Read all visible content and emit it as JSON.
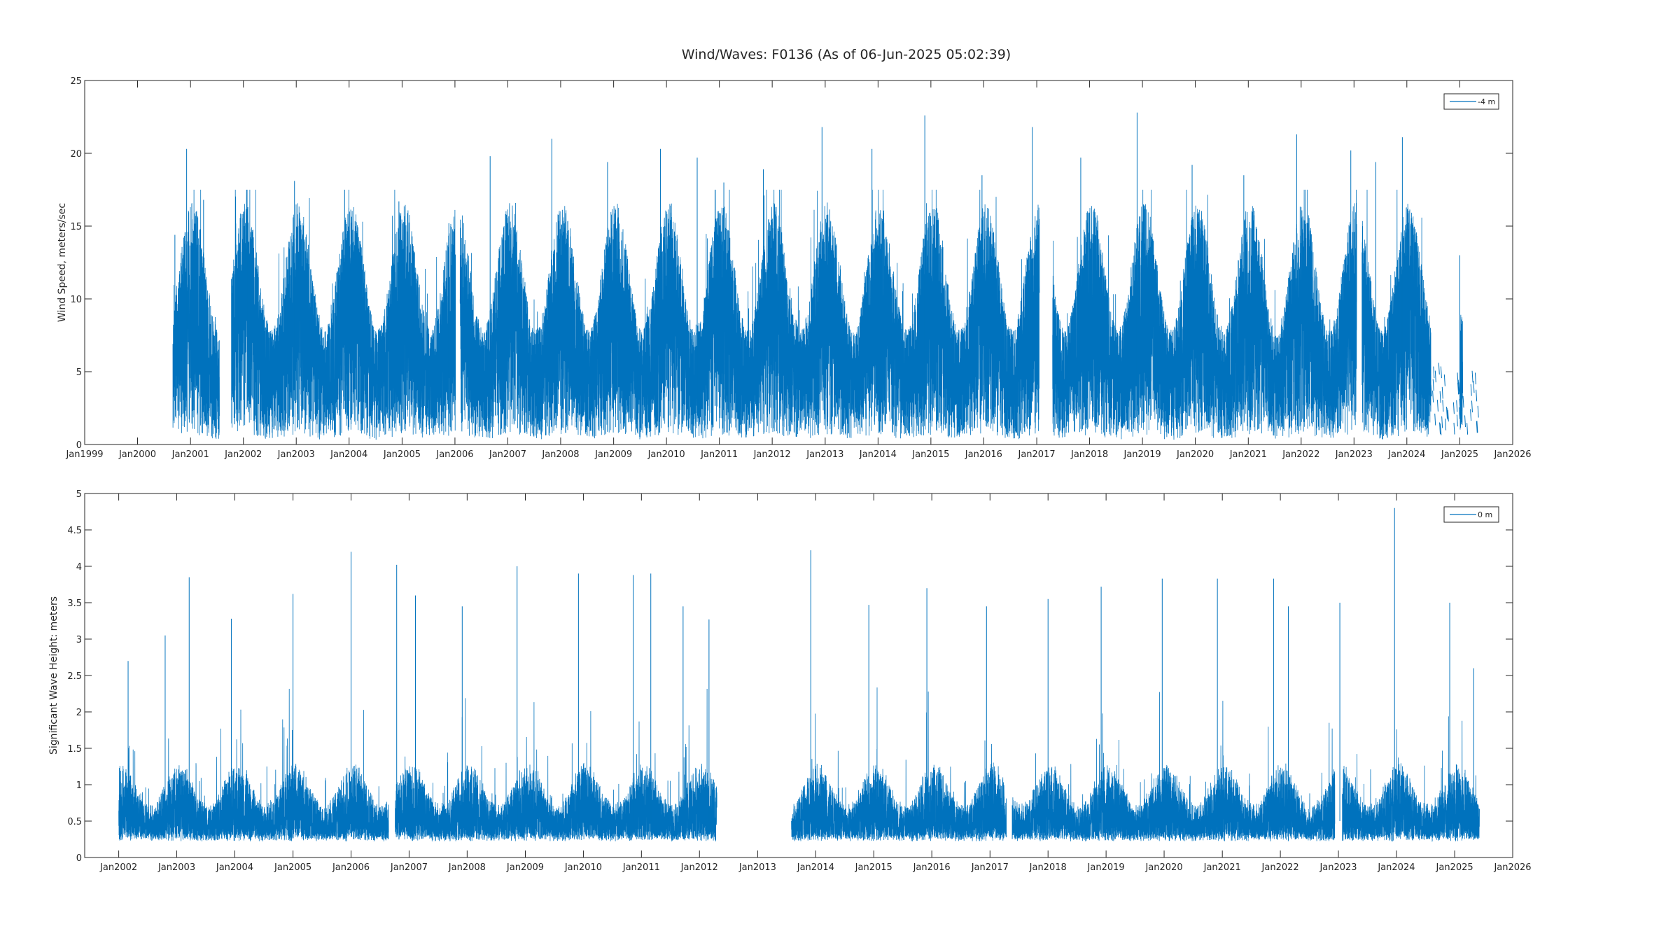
{
  "figure": {
    "title": "Wind/Waves: F0136 (As of 06-Jun-2025 05:02:39)"
  },
  "chart_data": [
    {
      "type": "line",
      "xlabel": "",
      "ylabel": "Wind Speed, meters/sec",
      "x_start": "2000-09-01",
      "x_end": "2025-06-06",
      "xlim": [
        "1999-01-01",
        "2026-01-01"
      ],
      "ylim": [
        0,
        25
      ],
      "yticks": [
        0,
        5,
        10,
        15,
        20,
        25
      ],
      "xtick_labels": [
        "Jan1999",
        "Jan2000",
        "Jan2001",
        "Jan2002",
        "Jan2003",
        "Jan2004",
        "Jan2005",
        "Jan2006",
        "Jan2007",
        "Jan2008",
        "Jan2009",
        "Jan2010",
        "Jan2011",
        "Jan2012",
        "Jan2013",
        "Jan2014",
        "Jan2015",
        "Jan2016",
        "Jan2017",
        "Jan2018",
        "Jan2019",
        "Jan2020",
        "Jan2021",
        "Jan2022",
        "Jan2023",
        "Jan2024",
        "Jan2025",
        "Jan2026"
      ],
      "grid": false,
      "legend": "top-right",
      "series": [
        {
          "name": "-4 m",
          "color": "#0072bd",
          "gaps": [
            [
              "2001-07-20",
              "2001-10-10"
            ],
            [
              "2006-01-05",
              "2006-02-05"
            ],
            [
              "2017-01-20",
              "2017-04-20"
            ],
            [
              "2023-01-20",
              "2023-02-25"
            ]
          ],
          "sparse_after": "2024-06-15",
          "peaks": [
            [
              "2000-09-15",
              14.4
            ],
            [
              "2000-12-05",
              20.3
            ],
            [
              "2001-04-01",
              16.8
            ],
            [
              "2002-02-01",
              16.3
            ],
            [
              "2002-12-20",
              18.1
            ],
            [
              "2003-12-01",
              17.5
            ],
            [
              "2004-12-10",
              16.7
            ],
            [
              "2005-11-20",
              15.2
            ],
            [
              "2006-09-01",
              19.8
            ],
            [
              "2007-11-01",
              21.0
            ],
            [
              "2008-11-20",
              19.4
            ],
            [
              "2009-11-20",
              20.3
            ],
            [
              "2010-08-01",
              19.7
            ],
            [
              "2011-02-01",
              18.0
            ],
            [
              "2011-11-01",
              18.9
            ],
            [
              "2012-12-10",
              21.8
            ],
            [
              "2013-11-20",
              20.3
            ],
            [
              "2014-11-20",
              22.6
            ],
            [
              "2015-12-20",
              18.5
            ],
            [
              "2016-12-01",
              21.8
            ],
            [
              "2017-11-01",
              19.7
            ],
            [
              "2018-11-25",
              22.8
            ],
            [
              "2019-12-10",
              19.2
            ],
            [
              "2020-12-01",
              18.5
            ],
            [
              "2021-12-01",
              21.3
            ],
            [
              "2022-12-10",
              20.2
            ],
            [
              "2023-06-01",
              19.4
            ],
            [
              "2023-12-01",
              21.1
            ],
            [
              "2025-01-01",
              13.0
            ]
          ]
        }
      ]
    },
    {
      "type": "line",
      "xlabel": "",
      "ylabel": "Significant Wave Height:  meters",
      "x_start": "2002-01-01",
      "x_end": "2025-06-06",
      "xlim": [
        "2001-06-01",
        "2026-01-01"
      ],
      "ylim": [
        0,
        5
      ],
      "yticks": [
        0,
        0.5,
        1,
        1.5,
        2,
        2.5,
        3,
        3.5,
        4,
        4.5,
        5
      ],
      "xtick_labels": [
        "Jan2002",
        "Jan2003",
        "Jan2004",
        "Jan2005",
        "Jan2006",
        "Jan2007",
        "Jan2008",
        "Jan2009",
        "Jan2010",
        "Jan2011",
        "Jan2012",
        "Jan2013",
        "Jan2014",
        "Jan2015",
        "Jan2016",
        "Jan2017",
        "Jan2018",
        "Jan2019",
        "Jan2020",
        "Jan2021",
        "Jan2022",
        "Jan2023",
        "Jan2024",
        "Jan2025",
        "Jan2026"
      ],
      "grid": false,
      "legend": "top-right",
      "series": [
        {
          "name": "0 m",
          "color": "#0072bd",
          "gaps": [
            [
              "2006-08-25",
              "2006-10-05"
            ],
            [
              "2012-04-20",
              "2013-08-01"
            ],
            [
              "2017-04-15",
              "2017-05-20"
            ],
            [
              "2022-12-10",
              "2023-01-25"
            ]
          ],
          "peaks": [
            [
              "2002-03-01",
              2.7
            ],
            [
              "2002-10-20",
              3.05
            ],
            [
              "2003-03-20",
              3.85
            ],
            [
              "2003-12-10",
              3.28
            ],
            [
              "2005-01-01",
              3.62
            ],
            [
              "2006-01-01",
              4.2
            ],
            [
              "2006-10-15",
              4.02
            ],
            [
              "2007-02-10",
              3.6
            ],
            [
              "2007-12-01",
              3.45
            ],
            [
              "2008-11-10",
              4.0
            ],
            [
              "2009-12-01",
              3.9
            ],
            [
              "2010-11-10",
              3.88
            ],
            [
              "2011-03-01",
              3.9
            ],
            [
              "2011-09-20",
              3.45
            ],
            [
              "2012-03-01",
              3.27
            ],
            [
              "2013-12-01",
              4.22
            ],
            [
              "2014-12-01",
              3.47
            ],
            [
              "2015-12-01",
              3.7
            ],
            [
              "2016-12-10",
              3.45
            ],
            [
              "2018-01-01",
              3.55
            ],
            [
              "2018-12-01",
              3.72
            ],
            [
              "2019-12-20",
              3.83
            ],
            [
              "2020-12-01",
              3.83
            ],
            [
              "2021-11-20",
              3.83
            ],
            [
              "2022-02-20",
              3.45
            ],
            [
              "2023-01-10",
              3.5
            ],
            [
              "2023-12-20",
              4.8
            ],
            [
              "2024-12-01",
              3.5
            ],
            [
              "2025-05-01",
              2.6
            ]
          ]
        }
      ]
    }
  ]
}
